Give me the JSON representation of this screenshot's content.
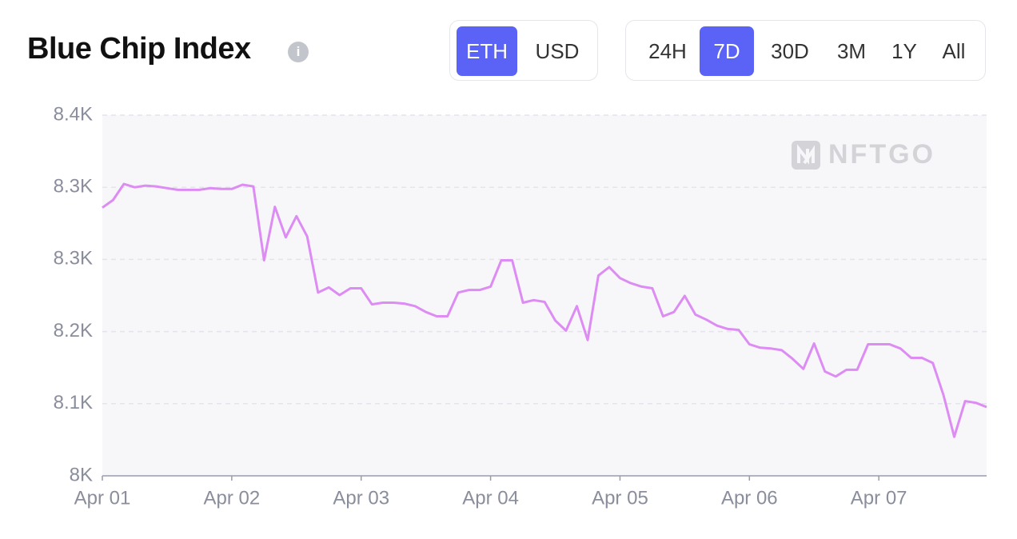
{
  "chart_data": {
    "type": "line",
    "title": "Blue Chip Index",
    "watermark": "NFTGO",
    "color": "#dc8cf2",
    "grid": true,
    "x": [
      0,
      0.083,
      0.167,
      0.25,
      0.333,
      0.417,
      0.5,
      0.583,
      0.667,
      0.75,
      0.833,
      0.917,
      1,
      1.083,
      1.167,
      1.25,
      1.333,
      1.417,
      1.5,
      1.583,
      1.667,
      1.75,
      1.833,
      1.917,
      2,
      2.083,
      2.167,
      2.25,
      2.333,
      2.417,
      2.5,
      2.583,
      2.667,
      2.75,
      2.833,
      2.917,
      3,
      3.083,
      3.167,
      3.25,
      3.333,
      3.417,
      3.5,
      3.583,
      3.667,
      3.75,
      3.833,
      3.917,
      4,
      4.083,
      4.167,
      4.25,
      4.333,
      4.417,
      4.5,
      4.583,
      4.667,
      4.75,
      4.833,
      4.917,
      5,
      5.083,
      5.167,
      5.25,
      5.333,
      5.417,
      5.5,
      5.583,
      5.667,
      5.75,
      5.833,
      5.917,
      6,
      6.083,
      6.167,
      6.25,
      6.333,
      6.417,
      6.5,
      6.583,
      6.667,
      6.75,
      6.833
    ],
    "values": [
      8316,
      8325,
      8344,
      8340,
      8342,
      8341,
      8339,
      8337,
      8337,
      8337,
      8339,
      8338,
      8338,
      8343,
      8341,
      8254,
      8317,
      8281,
      8306,
      8282,
      8216,
      8222,
      8213,
      8221,
      8221,
      8202,
      8204,
      8204,
      8203,
      8200,
      8193,
      8188,
      8188,
      8216,
      8219,
      8219,
      8223,
      8254,
      8254,
      8204,
      8207,
      8205,
      8183,
      8171,
      8200,
      8160,
      8236,
      8246,
      8233,
      8227,
      8223,
      8221,
      8188,
      8193,
      8212,
      8190,
      8184,
      8177,
      8173,
      8172,
      8155,
      8151,
      8150,
      8148,
      8138,
      8126,
      8156,
      8123,
      8117,
      8125,
      8125,
      8155,
      8155,
      8155,
      8150,
      8139,
      8139,
      8133,
      8095,
      8046,
      8088,
      8086,
      8081
    ],
    "xlim": [
      0,
      6.833
    ],
    "xticks": [
      {
        "value": 0,
        "label": "Apr 01"
      },
      {
        "value": 1,
        "label": "Apr 02"
      },
      {
        "value": 2,
        "label": "Apr 03"
      },
      {
        "value": 3,
        "label": "Apr 04"
      },
      {
        "value": 4,
        "label": "Apr 05"
      },
      {
        "value": 5,
        "label": "Apr 06"
      },
      {
        "value": 6,
        "label": "Apr 07"
      }
    ],
    "ylim": [
      8000,
      8425
    ],
    "yticks": [
      {
        "value": 8000,
        "label": "8K"
      },
      {
        "value": 8085,
        "label": "8.1K"
      },
      {
        "value": 8170,
        "label": "8.2K"
      },
      {
        "value": 8255,
        "label": "8.3K"
      },
      {
        "value": 8340,
        "label": "8.3K"
      },
      {
        "value": 8425,
        "label": "8.4K"
      }
    ]
  },
  "controls": {
    "currency": [
      "ETH",
      "USD"
    ],
    "currency_selected": "ETH",
    "range": [
      "24H",
      "7D",
      "30D",
      "3M",
      "1Y",
      "All"
    ],
    "range_selected": "7D"
  }
}
